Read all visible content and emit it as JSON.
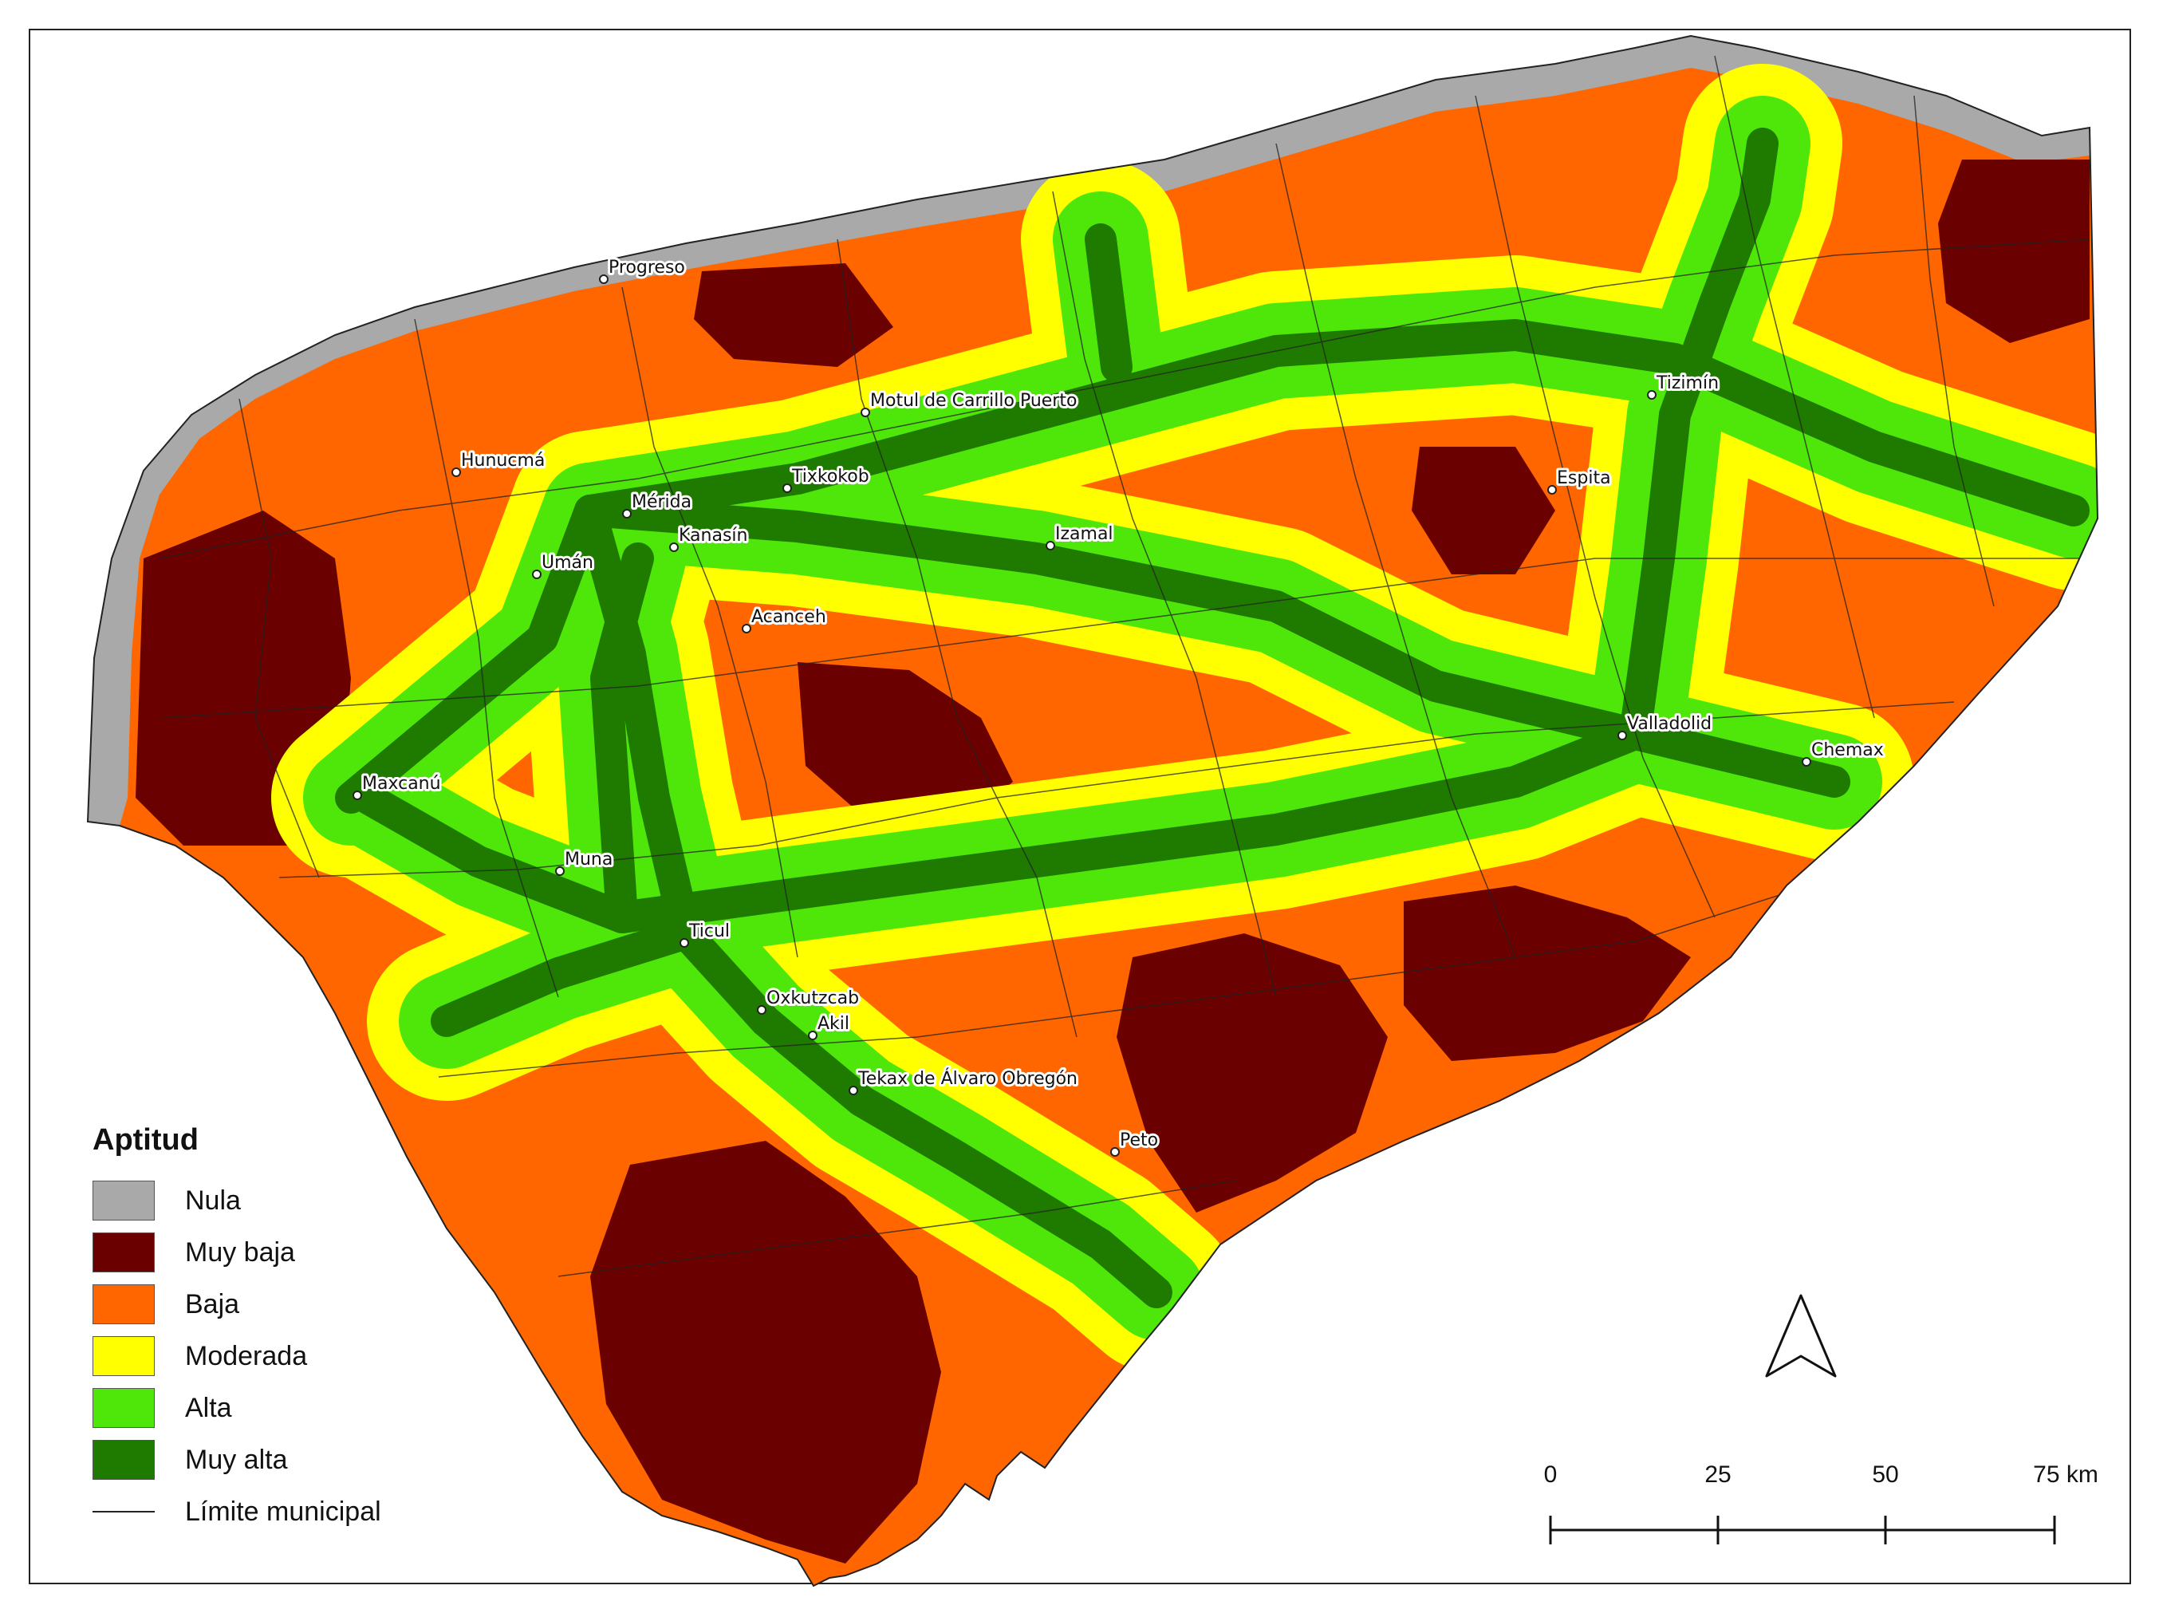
{
  "legend": {
    "title": "Aptitud",
    "items": [
      {
        "label": "Nula",
        "color": "#a9a9a9"
      },
      {
        "label": "Muy baja",
        "color": "#6b0000"
      },
      {
        "label": "Baja",
        "color": "#ff6600"
      },
      {
        "label": "Moderada",
        "color": "#ffff00"
      },
      {
        "label": "Alta",
        "color": "#4fe60a"
      },
      {
        "label": "Muy alta",
        "color": "#1f7a00"
      }
    ],
    "boundary_label": "Límite municipal"
  },
  "cities": [
    {
      "name": "Progreso"
    },
    {
      "name": "Hunucmá"
    },
    {
      "name": "Mérida"
    },
    {
      "name": "Tixkokob"
    },
    {
      "name": "Motul de Carrillo Puerto"
    },
    {
      "name": "Kanasín"
    },
    {
      "name": "Umán"
    },
    {
      "name": "Izamal"
    },
    {
      "name": "Acanceh"
    },
    {
      "name": "Tizimín"
    },
    {
      "name": "Espita"
    },
    {
      "name": "Valladolid"
    },
    {
      "name": "Chemax"
    },
    {
      "name": "Maxcanú"
    },
    {
      "name": "Muna"
    },
    {
      "name": "Ticul"
    },
    {
      "name": "Oxkutzcab"
    },
    {
      "name": "Akil"
    },
    {
      "name": "Tekax de Álvaro Obregón"
    },
    {
      "name": "Peto"
    }
  ],
  "scale_bar": {
    "ticks": [
      "0",
      "25",
      "50",
      "75 km"
    ]
  },
  "north_arrow": "north-arrow-icon"
}
